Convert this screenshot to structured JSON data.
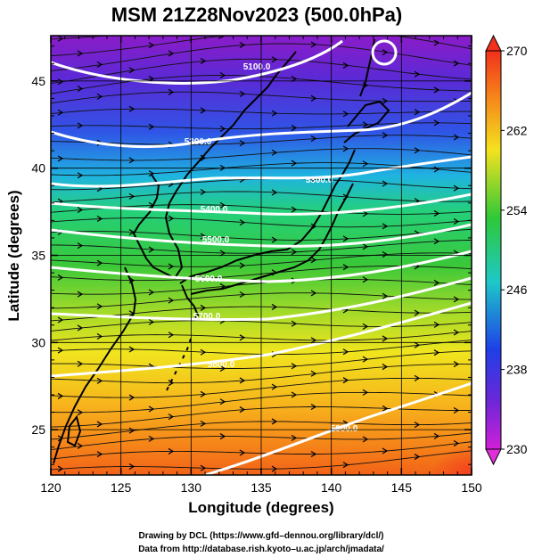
{
  "title": "MSM 21Z28Nov2023 (500.0hPa)",
  "x_axis": {
    "label": "Longitude (degrees)",
    "range": [
      120,
      150
    ],
    "ticks": [
      "120",
      "125",
      "130",
      "135",
      "140",
      "145",
      "150"
    ]
  },
  "y_axis": {
    "label": "Latitude  (degrees)",
    "range": [
      22.4,
      47.6
    ],
    "ticks": [
      "25",
      "30",
      "35",
      "40",
      "45"
    ]
  },
  "colorbar": {
    "range": [
      230,
      270
    ],
    "labels": [
      "270",
      "262",
      "254",
      "246",
      "238",
      "230"
    ]
  },
  "contours": [
    {
      "label": "5100.0"
    },
    {
      "label": "5200.0"
    },
    {
      "label": "5300.0"
    },
    {
      "label": "5400.0"
    },
    {
      "label": "5500.0"
    },
    {
      "label": "5600.0"
    },
    {
      "label": "5700.0"
    },
    {
      "label": "5800.0"
    },
    {
      "label": "5900.0"
    }
  ],
  "credits": [
    "Drawing by DCL (https://www.gfd–dennou.org/library/dcl/)",
    "Data from http://database.rish.kyoto–u.ac.jp/arch/jmadata/"
  ]
}
